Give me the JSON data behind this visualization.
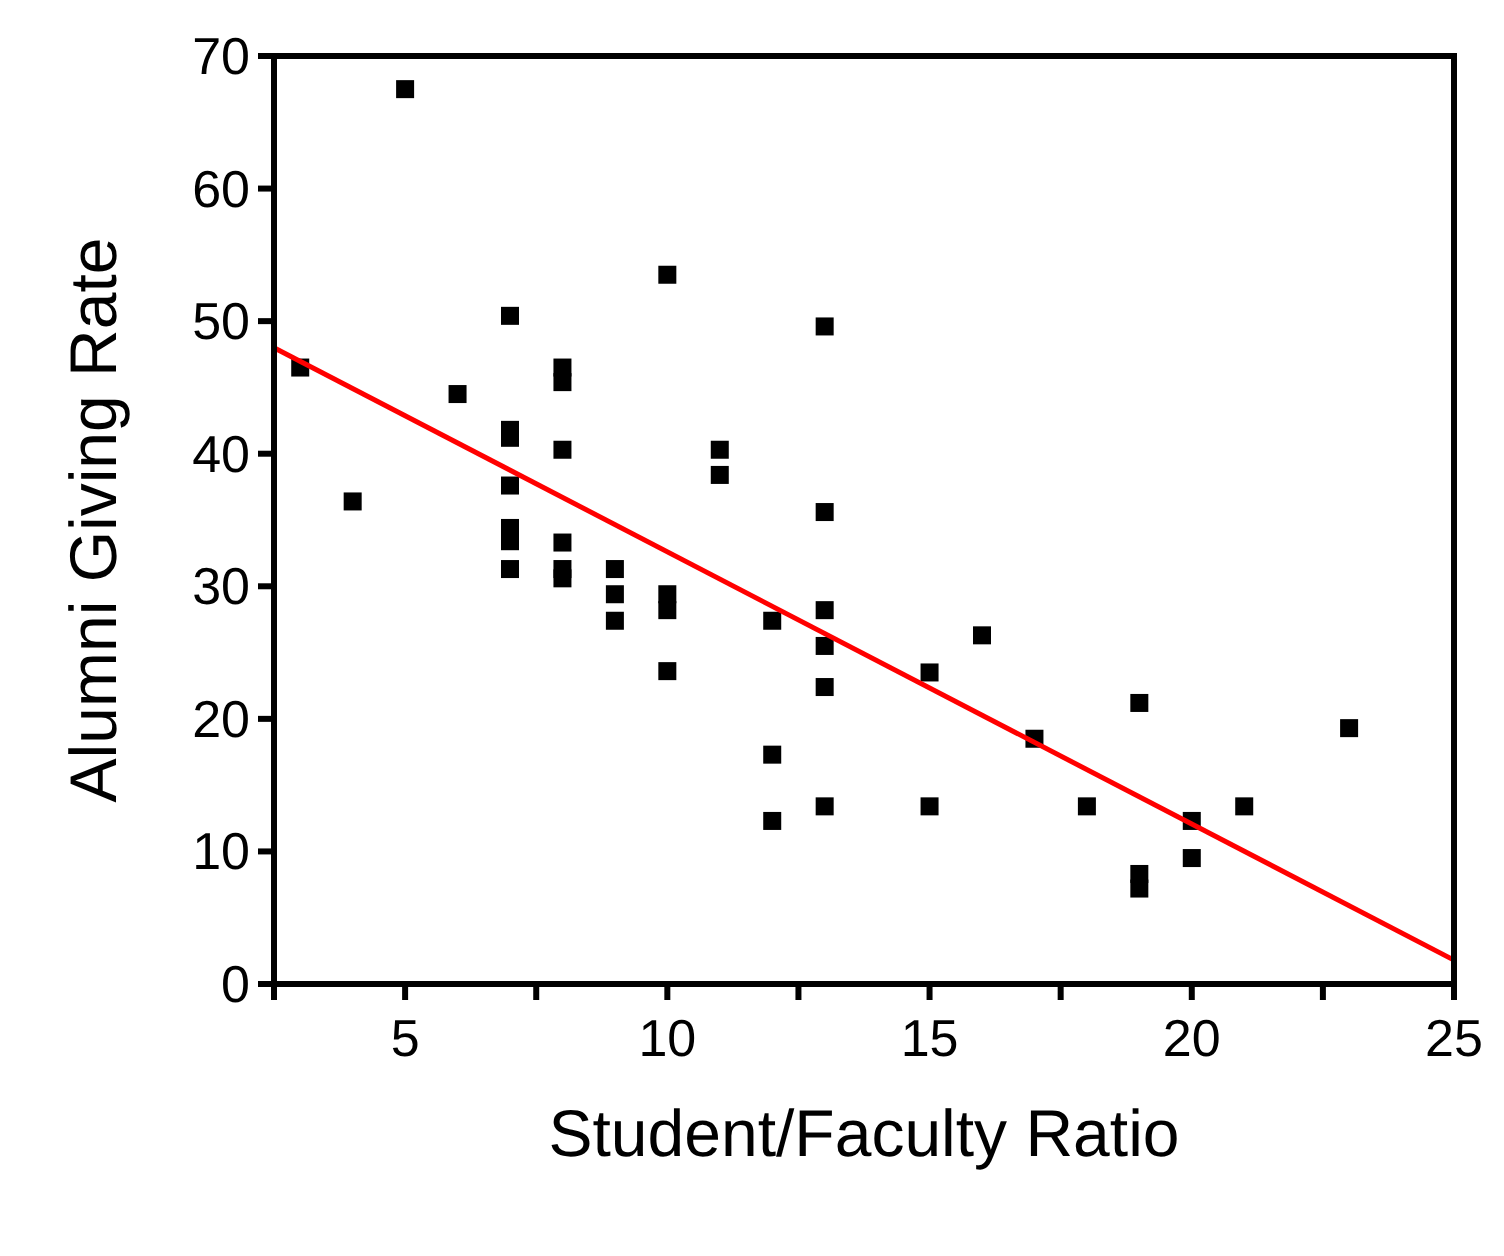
{
  "chart_data": {
    "type": "scatter",
    "xlabel": "Student/Faculty Ratio",
    "ylabel": "Alumni Giving Rate",
    "xlim": [
      2.5,
      25
    ],
    "ylim": [
      0,
      70
    ],
    "xticks": [
      {
        "value": 2.5,
        "label": null
      },
      5,
      {
        "value": 7.5,
        "label": null
      },
      10,
      {
        "value": 12.5,
        "label": null
      },
      15,
      {
        "value": 17.5,
        "label": null
      },
      20,
      {
        "value": 22.5,
        "label": null
      },
      25
    ],
    "yticks": [
      0,
      10,
      20,
      30,
      40,
      50,
      60,
      70
    ],
    "grid": false,
    "marker": "square",
    "series": [
      {
        "color": "#000000",
        "x": [
          5,
          3,
          4,
          6,
          7,
          7,
          7,
          7,
          7,
          7,
          7,
          8,
          8,
          8,
          8,
          8,
          8,
          9,
          9,
          9,
          10,
          10,
          10,
          10,
          11,
          11,
          12,
          12,
          12,
          13,
          13,
          13,
          13,
          13,
          13,
          15,
          15,
          16,
          17,
          18,
          19,
          19,
          19,
          20,
          20,
          21,
          23
        ],
        "values": [
          67.5,
          46.5,
          36.4,
          44.5,
          50.4,
          41.8,
          41.2,
          37.6,
          34.4,
          33.4,
          31.3,
          46.5,
          45.4,
          40.3,
          33.3,
          31.3,
          30.6,
          31.3,
          29.4,
          27.4,
          53.5,
          29.4,
          28.2,
          23.6,
          40.3,
          38.4,
          27.4,
          17.3,
          12.3,
          49.6,
          35.6,
          28.2,
          25.5,
          22.4,
          13.4,
          23.5,
          13.4,
          26.3,
          18.5,
          13.4,
          21.2,
          8.3,
          7.2,
          12.3,
          9.5,
          13.4,
          19.3
        ]
      },
      {
        "type": "line",
        "color": "#ff0000",
        "marker": "none",
        "line_style": "solid",
        "x": [
          2.5,
          25
        ],
        "values": [
          48,
          1.8
        ]
      }
    ]
  }
}
